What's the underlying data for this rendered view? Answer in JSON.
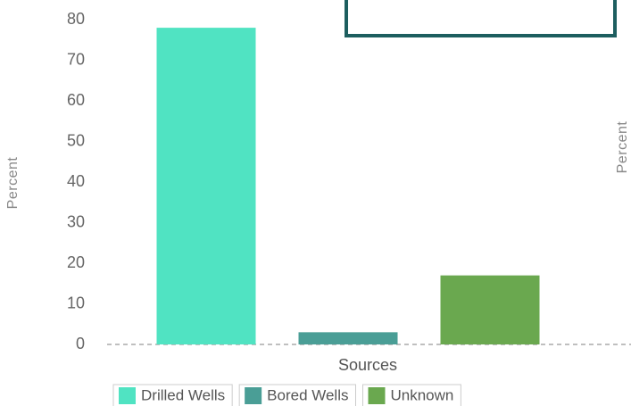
{
  "chart_data": {
    "type": "bar",
    "categories": [
      "Drilled Wells",
      "Bored Wells",
      "Unknown"
    ],
    "values": [
      78,
      3,
      17
    ],
    "colors": [
      "#50e3c2",
      "#4a9e96",
      "#6aa84f"
    ],
    "y_axis_label": "Percent",
    "y2_axis_label": "Percent",
    "x_axis_label": "Sources",
    "ylim": [
      0,
      80
    ],
    "yticks": [
      0,
      10,
      20,
      30,
      40,
      50,
      60,
      70,
      80
    ],
    "grid": false,
    "legend": "bottom"
  }
}
